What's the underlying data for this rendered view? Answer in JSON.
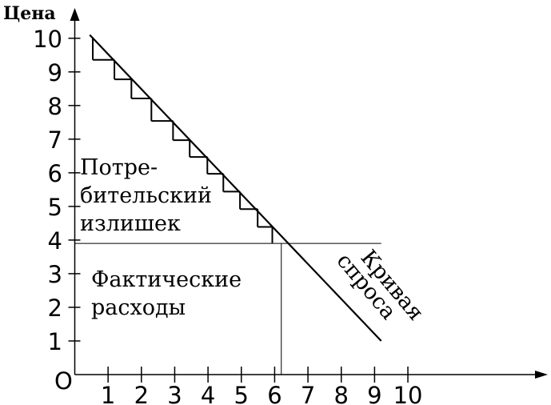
{
  "chart_data": {
    "type": "demand",
    "y_label": "Цена",
    "origin_label": "O",
    "xlim": [
      0,
      14.2
    ],
    "ylim": [
      0,
      10.9
    ],
    "xticks": [
      1,
      2,
      3,
      4,
      5,
      6,
      7,
      8,
      9,
      10
    ],
    "yticks": [
      1,
      2,
      3,
      4,
      5,
      6,
      7,
      8,
      9,
      10
    ],
    "demand": {
      "name": [
        "Кривая",
        "спроса"
      ],
      "x": [
        0.45,
        9.2
      ],
      "values": [
        10.1,
        1.0
      ]
    },
    "price": 3.9,
    "quantity": 6.2,
    "steps": {
      "x": [
        0.54,
        1.19,
        1.7,
        2.3,
        2.95,
        3.45,
        3.98,
        4.46,
        4.96,
        5.49,
        5.93
      ],
      "values": [
        9.36,
        8.78,
        8.21,
        7.54,
        6.97,
        6.47,
        5.97,
        5.44,
        4.92,
        4.39,
        3.91
      ]
    },
    "surplus_label": [
      "Потре-",
      "бительский",
      "излишек"
    ],
    "spending_label": [
      "Фактические",
      "расходы"
    ],
    "color": "#000000"
  }
}
